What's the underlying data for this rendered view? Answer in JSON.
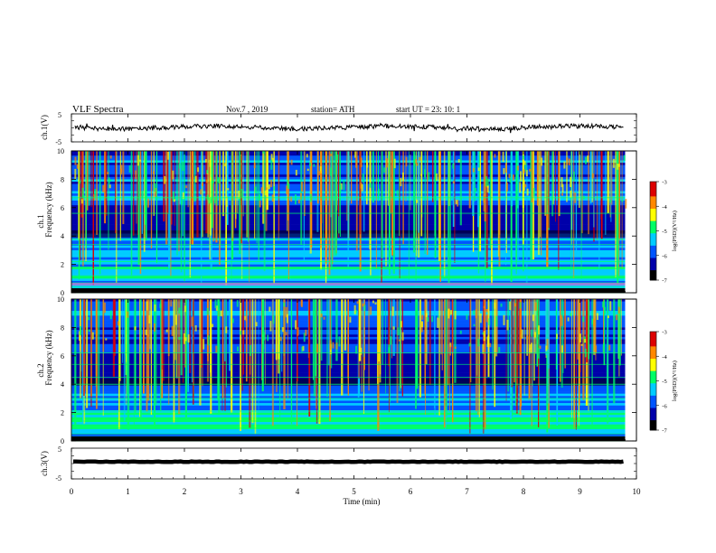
{
  "header": {
    "title": "VLF  Spectra",
    "date": "Nov.7  , 2019",
    "station": "station= ATH",
    "start": "start  UT  =    23: 10: 1"
  },
  "panels": {
    "ch1": {
      "label": "ch.1(V)",
      "ticks": [
        "5",
        "-5"
      ]
    },
    "spec1": {
      "ylabel1": "ch.1",
      "ylabel2": "Frequency  (kHz)",
      "ticks": [
        "0",
        "2",
        "4",
        "6",
        "8",
        "10"
      ]
    },
    "spec2": {
      "ylabel1": "ch.2",
      "ylabel2": "Frequency  (kHz)",
      "ticks": [
        "0",
        "2",
        "4",
        "6",
        "8",
        "10"
      ]
    },
    "ch3": {
      "label": "ch.3(V)",
      "ticks": [
        "5",
        "-5"
      ]
    }
  },
  "colorbar": {
    "label": "log(PSD)(V²/Hz)",
    "ticks": [
      "-3",
      "-4",
      "-5",
      "-6",
      "-7"
    ]
  },
  "chart_data": {
    "type": "heatmap",
    "xlabel": "Time  (min)",
    "xlim": [
      0,
      10
    ],
    "xticks": [
      "0",
      "1",
      "2",
      "3",
      "4",
      "5",
      "6",
      "7",
      "8",
      "9",
      "10"
    ],
    "ylim_freq_khz": [
      0,
      10
    ],
    "ylim_voltage": [
      -5,
      5
    ],
    "data_end_min": 9.8,
    "colorscale_limits": [
      -7,
      -3
    ],
    "colors": [
      "#000000",
      "#0000aa",
      "#0055ff",
      "#00ccff",
      "#00ff66",
      "#ffff00",
      "#ff8800",
      "#dd0000",
      "#ffffff"
    ]
  }
}
